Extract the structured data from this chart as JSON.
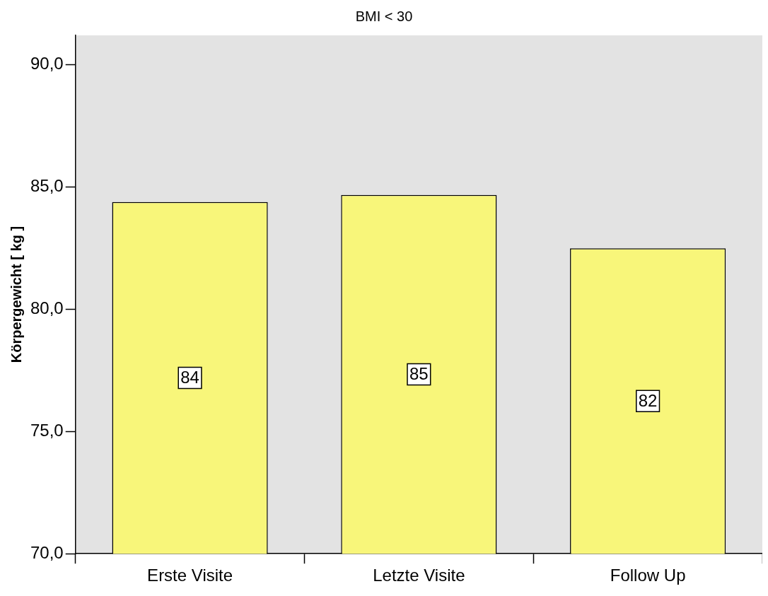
{
  "chart_data": {
    "type": "bar",
    "title": "BMI < 30",
    "ylabel": "Körpergewicht [ kg ]",
    "categories": [
      "Erste Visite",
      "Letzte Visite",
      "Follow Up"
    ],
    "values": [
      84.38,
      84.67,
      82.49
    ],
    "value_labels": [
      "84",
      "85",
      "82"
    ],
    "color": "#f8f67a",
    "ylim": [
      70,
      91.2
    ],
    "yticks": [
      {
        "value": 70,
        "label": "70,0"
      },
      {
        "value": 75,
        "label": "75,0"
      },
      {
        "value": 80,
        "label": "80,0"
      },
      {
        "value": 85,
        "label": "85,0"
      },
      {
        "value": 90,
        "label": "90,0"
      }
    ],
    "grid": false,
    "legend": false
  }
}
